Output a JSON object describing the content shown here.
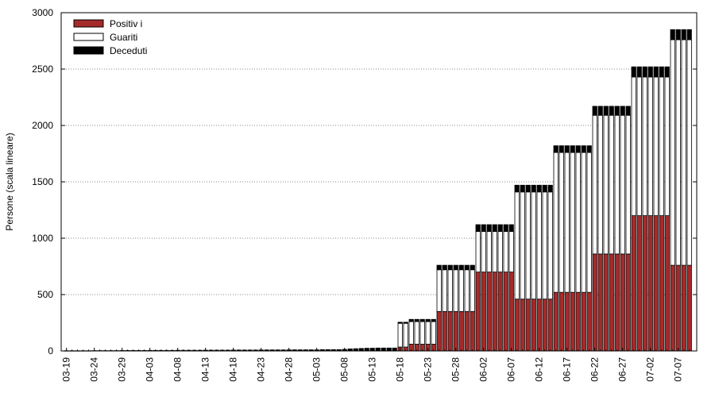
{
  "chart_data": {
    "type": "bar",
    "stacked": true,
    "title": "",
    "xlabel": "",
    "ylabel": "Persone (scala lineare)",
    "ylim": [
      0,
      3000
    ],
    "yticks": [
      0,
      500,
      1000,
      1500,
      2000,
      2500,
      3000
    ],
    "grid": "horizontal dotted",
    "legend_position": "top-left",
    "start_date": "2020-03-19",
    "xtick_labels": [
      "03-19",
      "03-24",
      "03-29",
      "04-03",
      "04-08",
      "04-13",
      "04-18",
      "04-23",
      "04-28",
      "05-03",
      "05-08",
      "05-13",
      "05-18",
      "05-23",
      "05-28",
      "06-02",
      "06-07",
      "06-12",
      "06-17",
      "06-22",
      "06-27",
      "07-02",
      "07-07"
    ],
    "series": [
      {
        "name": "Positiv i",
        "color": "#a52a2a",
        "values": [
          0,
          0,
          0,
          0,
          0,
          0,
          0,
          0,
          0,
          0,
          0,
          0,
          0,
          0,
          0,
          0,
          0,
          0,
          0,
          0,
          0,
          0,
          0,
          0,
          0,
          0,
          0,
          0,
          0,
          0,
          0,
          0,
          0,
          0,
          0,
          0,
          0,
          0,
          0,
          0,
          0,
          0,
          0,
          0,
          0,
          0,
          0,
          0,
          0,
          0,
          0,
          0,
          0,
          0,
          0,
          0,
          0,
          0,
          0,
          0,
          35,
          35,
          60,
          60,
          60,
          60,
          60,
          350,
          350,
          350,
          350,
          350,
          350,
          350,
          700,
          700,
          700,
          700,
          700,
          700,
          700,
          460,
          460,
          460,
          460,
          460,
          460,
          460,
          520,
          520,
          520,
          520,
          520,
          520,
          520,
          860,
          860,
          860,
          860,
          860,
          860,
          860,
          1200,
          1200,
          1200,
          1200,
          1200,
          1200,
          1200,
          760,
          760,
          760,
          760
        ]
      },
      {
        "name": "Guariti",
        "color": "#ffffff",
        "values": [
          0,
          0,
          0,
          0,
          0,
          0,
          0,
          0,
          0,
          0,
          0,
          0,
          0,
          0,
          0,
          0,
          0,
          0,
          0,
          0,
          0,
          0,
          0,
          0,
          0,
          0,
          0,
          0,
          0,
          0,
          0,
          0,
          0,
          0,
          0,
          0,
          0,
          0,
          0,
          0,
          0,
          0,
          0,
          0,
          0,
          0,
          0,
          0,
          0,
          0,
          0,
          0,
          0,
          0,
          0,
          0,
          0,
          0,
          0,
          0,
          210,
          210,
          200,
          200,
          200,
          200,
          200,
          370,
          370,
          370,
          370,
          370,
          370,
          370,
          360,
          360,
          360,
          360,
          360,
          360,
          360,
          950,
          950,
          950,
          950,
          950,
          950,
          950,
          1240,
          1240,
          1240,
          1240,
          1240,
          1240,
          1240,
          1230,
          1230,
          1230,
          1230,
          1230,
          1230,
          1230,
          1230,
          1230,
          1230,
          1230,
          1230,
          1230,
          1230,
          2000,
          2000,
          2000,
          2000
        ]
      },
      {
        "name": "Deceduti",
        "color": "#000000",
        "values": [
          2,
          2,
          2,
          2,
          2,
          3,
          3,
          3,
          3,
          3,
          4,
          4,
          4,
          4,
          4,
          5,
          5,
          5,
          5,
          5,
          6,
          6,
          6,
          6,
          6,
          7,
          7,
          7,
          7,
          7,
          8,
          8,
          8,
          8,
          8,
          9,
          9,
          9,
          9,
          9,
          10,
          10,
          10,
          10,
          10,
          10,
          12,
          12,
          12,
          12,
          14,
          18,
          20,
          22,
          24,
          24,
          26,
          26,
          26,
          26,
          10,
          10,
          20,
          20,
          20,
          20,
          20,
          40,
          40,
          40,
          40,
          40,
          40,
          40,
          60,
          60,
          60,
          60,
          60,
          60,
          60,
          60,
          60,
          60,
          60,
          60,
          60,
          60,
          60,
          60,
          60,
          60,
          60,
          60,
          60,
          80,
          80,
          80,
          80,
          80,
          80,
          80,
          90,
          90,
          90,
          90,
          90,
          90,
          90,
          90,
          90,
          90,
          90
        ]
      }
    ]
  }
}
